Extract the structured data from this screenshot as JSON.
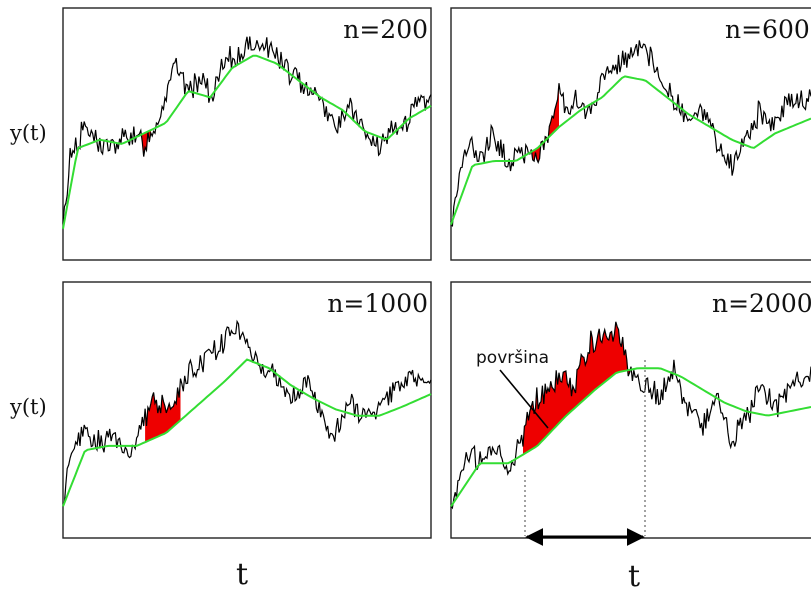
{
  "chart_data": [
    {
      "type": "line",
      "panel_label": "n=200",
      "ylabel": "y(t)",
      "xlabel": "",
      "series": [
        {
          "color": "#000000",
          "x": [
            0,
            0.02,
            0.06,
            0.1,
            0.14,
            0.18,
            0.22,
            0.26,
            0.3,
            0.34,
            0.38,
            0.4,
            0.42,
            0.44,
            0.46,
            0.5,
            0.54,
            0.58,
            0.62,
            0.66,
            0.7,
            0.74,
            0.78,
            0.82,
            0.86,
            0.9,
            0.94,
            0.98,
            1.0
          ],
          "y": [
            0.1,
            0.45,
            0.58,
            0.5,
            0.48,
            0.55,
            0.5,
            0.62,
            0.88,
            0.75,
            0.82,
            0.7,
            0.8,
            0.88,
            0.9,
            0.95,
            0.98,
            0.92,
            0.82,
            0.78,
            0.72,
            0.58,
            0.68,
            0.54,
            0.48,
            0.56,
            0.62,
            0.72,
            0.7
          ]
        },
        {
          "color": "#33dd33",
          "x": [
            0,
            0.04,
            0.1,
            0.16,
            0.22,
            0.28,
            0.34,
            0.4,
            0.46,
            0.52,
            0.58,
            0.64,
            0.7,
            0.76,
            0.82,
            0.88,
            0.94,
            1.0
          ],
          "y": [
            0.1,
            0.48,
            0.52,
            0.5,
            0.55,
            0.6,
            0.75,
            0.72,
            0.86,
            0.92,
            0.88,
            0.8,
            0.72,
            0.66,
            0.56,
            0.52,
            0.62,
            0.68
          ]
        }
      ],
      "shaded_range": [
        0.21,
        0.24
      ]
    },
    {
      "type": "line",
      "panel_label": "n=600",
      "ylabel": "",
      "xlabel": "",
      "series": [
        {
          "color": "#000000",
          "x": [
            0,
            0.04,
            0.08,
            0.12,
            0.16,
            0.2,
            0.24,
            0.28,
            0.3,
            0.32,
            0.34,
            0.38,
            0.42,
            0.46,
            0.5,
            0.54,
            0.58,
            0.62,
            0.66,
            0.7,
            0.74,
            0.78,
            0.82,
            0.86,
            0.9,
            0.94,
            1.0
          ],
          "y": [
            0.12,
            0.5,
            0.45,
            0.55,
            0.4,
            0.48,
            0.42,
            0.6,
            0.75,
            0.66,
            0.72,
            0.62,
            0.8,
            0.88,
            0.92,
            0.95,
            0.8,
            0.72,
            0.6,
            0.66,
            0.48,
            0.4,
            0.52,
            0.66,
            0.58,
            0.7,
            0.72
          ]
        },
        {
          "color": "#33dd33",
          "x": [
            0,
            0.06,
            0.12,
            0.18,
            0.24,
            0.3,
            0.36,
            0.42,
            0.48,
            0.54,
            0.6,
            0.66,
            0.72,
            0.78,
            0.84,
            0.9,
            1.0
          ],
          "y": [
            0.12,
            0.4,
            0.42,
            0.42,
            0.48,
            0.58,
            0.66,
            0.72,
            0.82,
            0.8,
            0.72,
            0.64,
            0.58,
            0.52,
            0.48,
            0.55,
            0.62
          ]
        }
      ],
      "shaded_range": [
        0.22,
        0.3
      ]
    },
    {
      "type": "line",
      "panel_label": "n=1000",
      "ylabel": "y(t)",
      "xlabel": "t",
      "series": [
        {
          "color": "#000000",
          "x": [
            0,
            0.02,
            0.06,
            0.1,
            0.14,
            0.18,
            0.22,
            0.24,
            0.26,
            0.3,
            0.34,
            0.38,
            0.42,
            0.46,
            0.5,
            0.54,
            0.58,
            0.62,
            0.66,
            0.7,
            0.74,
            0.78,
            0.82,
            0.86,
            0.9,
            0.94,
            1.0
          ],
          "y": [
            0.1,
            0.36,
            0.46,
            0.38,
            0.44,
            0.35,
            0.5,
            0.62,
            0.56,
            0.58,
            0.7,
            0.78,
            0.84,
            0.92,
            0.86,
            0.74,
            0.7,
            0.62,
            0.68,
            0.52,
            0.44,
            0.58,
            0.52,
            0.56,
            0.64,
            0.7,
            0.66
          ]
        },
        {
          "color": "#33dd33",
          "x": [
            0,
            0.06,
            0.12,
            0.2,
            0.28,
            0.36,
            0.44,
            0.5,
            0.56,
            0.62,
            0.68,
            0.74,
            0.8,
            0.86,
            0.92,
            1.0
          ],
          "y": [
            0.1,
            0.36,
            0.38,
            0.38,
            0.44,
            0.56,
            0.68,
            0.78,
            0.74,
            0.66,
            0.6,
            0.55,
            0.52,
            0.52,
            0.56,
            0.62
          ]
        }
      ],
      "shaded_range": [
        0.22,
        0.32
      ]
    },
    {
      "type": "line",
      "panel_label": "n=2000",
      "ylabel": "",
      "xlabel": "t",
      "annotation": "površina",
      "series": [
        {
          "color": "#000000",
          "x": [
            0,
            0.04,
            0.08,
            0.12,
            0.16,
            0.2,
            0.22,
            0.26,
            0.3,
            0.34,
            0.38,
            0.42,
            0.46,
            0.5,
            0.54,
            0.58,
            0.62,
            0.66,
            0.7,
            0.74,
            0.78,
            0.82,
            0.86,
            0.9,
            0.94,
            1.0
          ],
          "y": [
            0.1,
            0.34,
            0.3,
            0.36,
            0.28,
            0.4,
            0.56,
            0.62,
            0.7,
            0.66,
            0.84,
            0.88,
            0.92,
            0.7,
            0.66,
            0.6,
            0.72,
            0.56,
            0.48,
            0.6,
            0.4,
            0.52,
            0.64,
            0.56,
            0.66,
            0.7
          ]
        },
        {
          "color": "#33dd33",
          "x": [
            0,
            0.08,
            0.16,
            0.24,
            0.32,
            0.4,
            0.46,
            0.52,
            0.58,
            0.64,
            0.7,
            0.76,
            0.82,
            0.88,
            0.94,
            1.0
          ],
          "y": [
            0.1,
            0.3,
            0.3,
            0.38,
            0.52,
            0.64,
            0.72,
            0.74,
            0.74,
            0.7,
            0.64,
            0.58,
            0.54,
            0.52,
            0.54,
            0.56
          ]
        }
      ],
      "shaded_range": [
        0.2,
        0.5
      ]
    }
  ]
}
